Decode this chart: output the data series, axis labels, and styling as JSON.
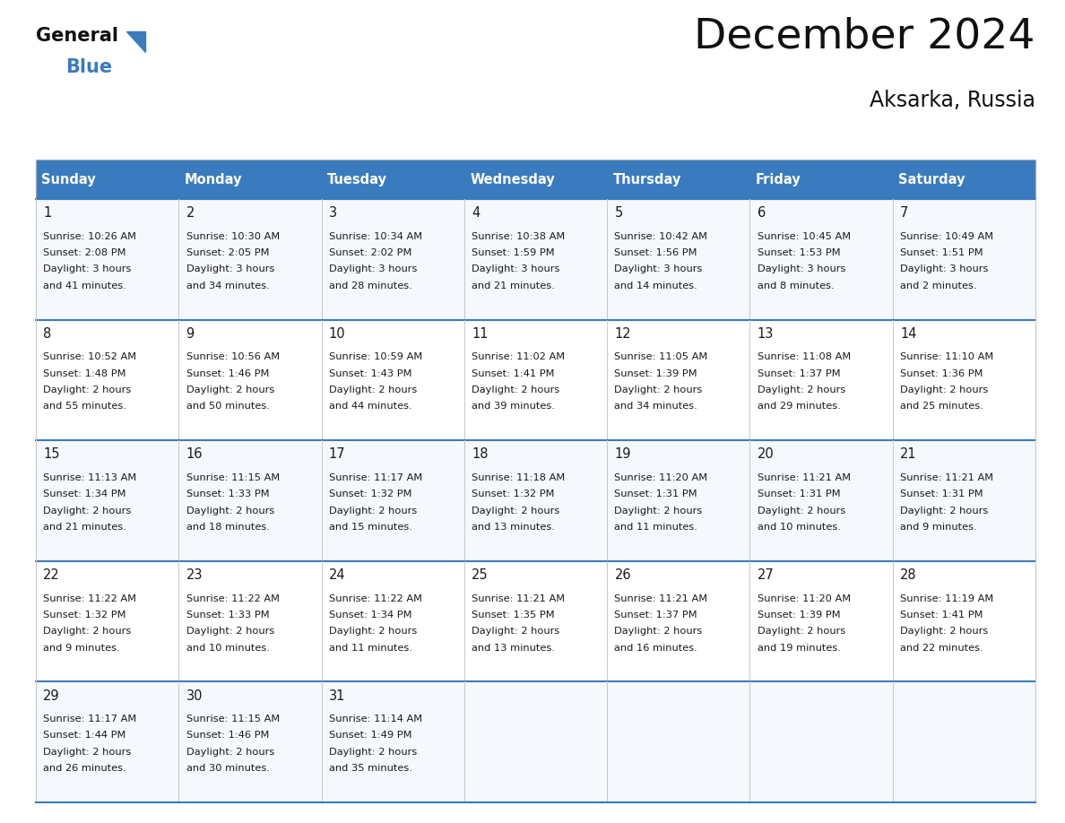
{
  "title": "December 2024",
  "subtitle": "Aksarka, Russia",
  "header_color": "#3a7bbf",
  "header_text_color": "#ffffff",
  "row_bg_odd": "#f5f8fc",
  "row_bg_even": "#ffffff",
  "separator_color": "#3a7bbf",
  "grid_color": "#c8c8c8",
  "text_color": "#1a1a1a",
  "day_headers": [
    "Sunday",
    "Monday",
    "Tuesday",
    "Wednesday",
    "Thursday",
    "Friday",
    "Saturday"
  ],
  "days": [
    {
      "day": 1,
      "col": 0,
      "row": 0,
      "sunrise": "10:26 AM",
      "sunset": "2:08 PM",
      "daylight_h": "3 hours",
      "daylight_m": "and 41 minutes."
    },
    {
      "day": 2,
      "col": 1,
      "row": 0,
      "sunrise": "10:30 AM",
      "sunset": "2:05 PM",
      "daylight_h": "3 hours",
      "daylight_m": "and 34 minutes."
    },
    {
      "day": 3,
      "col": 2,
      "row": 0,
      "sunrise": "10:34 AM",
      "sunset": "2:02 PM",
      "daylight_h": "3 hours",
      "daylight_m": "and 28 minutes."
    },
    {
      "day": 4,
      "col": 3,
      "row": 0,
      "sunrise": "10:38 AM",
      "sunset": "1:59 PM",
      "daylight_h": "3 hours",
      "daylight_m": "and 21 minutes."
    },
    {
      "day": 5,
      "col": 4,
      "row": 0,
      "sunrise": "10:42 AM",
      "sunset": "1:56 PM",
      "daylight_h": "3 hours",
      "daylight_m": "and 14 minutes."
    },
    {
      "day": 6,
      "col": 5,
      "row": 0,
      "sunrise": "10:45 AM",
      "sunset": "1:53 PM",
      "daylight_h": "3 hours",
      "daylight_m": "and 8 minutes."
    },
    {
      "day": 7,
      "col": 6,
      "row": 0,
      "sunrise": "10:49 AM",
      "sunset": "1:51 PM",
      "daylight_h": "3 hours",
      "daylight_m": "and 2 minutes."
    },
    {
      "day": 8,
      "col": 0,
      "row": 1,
      "sunrise": "10:52 AM",
      "sunset": "1:48 PM",
      "daylight_h": "2 hours",
      "daylight_m": "and 55 minutes."
    },
    {
      "day": 9,
      "col": 1,
      "row": 1,
      "sunrise": "10:56 AM",
      "sunset": "1:46 PM",
      "daylight_h": "2 hours",
      "daylight_m": "and 50 minutes."
    },
    {
      "day": 10,
      "col": 2,
      "row": 1,
      "sunrise": "10:59 AM",
      "sunset": "1:43 PM",
      "daylight_h": "2 hours",
      "daylight_m": "and 44 minutes."
    },
    {
      "day": 11,
      "col": 3,
      "row": 1,
      "sunrise": "11:02 AM",
      "sunset": "1:41 PM",
      "daylight_h": "2 hours",
      "daylight_m": "and 39 minutes."
    },
    {
      "day": 12,
      "col": 4,
      "row": 1,
      "sunrise": "11:05 AM",
      "sunset": "1:39 PM",
      "daylight_h": "2 hours",
      "daylight_m": "and 34 minutes."
    },
    {
      "day": 13,
      "col": 5,
      "row": 1,
      "sunrise": "11:08 AM",
      "sunset": "1:37 PM",
      "daylight_h": "2 hours",
      "daylight_m": "and 29 minutes."
    },
    {
      "day": 14,
      "col": 6,
      "row": 1,
      "sunrise": "11:10 AM",
      "sunset": "1:36 PM",
      "daylight_h": "2 hours",
      "daylight_m": "and 25 minutes."
    },
    {
      "day": 15,
      "col": 0,
      "row": 2,
      "sunrise": "11:13 AM",
      "sunset": "1:34 PM",
      "daylight_h": "2 hours",
      "daylight_m": "and 21 minutes."
    },
    {
      "day": 16,
      "col": 1,
      "row": 2,
      "sunrise": "11:15 AM",
      "sunset": "1:33 PM",
      "daylight_h": "2 hours",
      "daylight_m": "and 18 minutes."
    },
    {
      "day": 17,
      "col": 2,
      "row": 2,
      "sunrise": "11:17 AM",
      "sunset": "1:32 PM",
      "daylight_h": "2 hours",
      "daylight_m": "and 15 minutes."
    },
    {
      "day": 18,
      "col": 3,
      "row": 2,
      "sunrise": "11:18 AM",
      "sunset": "1:32 PM",
      "daylight_h": "2 hours",
      "daylight_m": "and 13 minutes."
    },
    {
      "day": 19,
      "col": 4,
      "row": 2,
      "sunrise": "11:20 AM",
      "sunset": "1:31 PM",
      "daylight_h": "2 hours",
      "daylight_m": "and 11 minutes."
    },
    {
      "day": 20,
      "col": 5,
      "row": 2,
      "sunrise": "11:21 AM",
      "sunset": "1:31 PM",
      "daylight_h": "2 hours",
      "daylight_m": "and 10 minutes."
    },
    {
      "day": 21,
      "col": 6,
      "row": 2,
      "sunrise": "11:21 AM",
      "sunset": "1:31 PM",
      "daylight_h": "2 hours",
      "daylight_m": "and 9 minutes."
    },
    {
      "day": 22,
      "col": 0,
      "row": 3,
      "sunrise": "11:22 AM",
      "sunset": "1:32 PM",
      "daylight_h": "2 hours",
      "daylight_m": "and 9 minutes."
    },
    {
      "day": 23,
      "col": 1,
      "row": 3,
      "sunrise": "11:22 AM",
      "sunset": "1:33 PM",
      "daylight_h": "2 hours",
      "daylight_m": "and 10 minutes."
    },
    {
      "day": 24,
      "col": 2,
      "row": 3,
      "sunrise": "11:22 AM",
      "sunset": "1:34 PM",
      "daylight_h": "2 hours",
      "daylight_m": "and 11 minutes."
    },
    {
      "day": 25,
      "col": 3,
      "row": 3,
      "sunrise": "11:21 AM",
      "sunset": "1:35 PM",
      "daylight_h": "2 hours",
      "daylight_m": "and 13 minutes."
    },
    {
      "day": 26,
      "col": 4,
      "row": 3,
      "sunrise": "11:21 AM",
      "sunset": "1:37 PM",
      "daylight_h": "2 hours",
      "daylight_m": "and 16 minutes."
    },
    {
      "day": 27,
      "col": 5,
      "row": 3,
      "sunrise": "11:20 AM",
      "sunset": "1:39 PM",
      "daylight_h": "2 hours",
      "daylight_m": "and 19 minutes."
    },
    {
      "day": 28,
      "col": 6,
      "row": 3,
      "sunrise": "11:19 AM",
      "sunset": "1:41 PM",
      "daylight_h": "2 hours",
      "daylight_m": "and 22 minutes."
    },
    {
      "day": 29,
      "col": 0,
      "row": 4,
      "sunrise": "11:17 AM",
      "sunset": "1:44 PM",
      "daylight_h": "2 hours",
      "daylight_m": "and 26 minutes."
    },
    {
      "day": 30,
      "col": 1,
      "row": 4,
      "sunrise": "11:15 AM",
      "sunset": "1:46 PM",
      "daylight_h": "2 hours",
      "daylight_m": "and 30 minutes."
    },
    {
      "day": 31,
      "col": 2,
      "row": 4,
      "sunrise": "11:14 AM",
      "sunset": "1:49 PM",
      "daylight_h": "2 hours",
      "daylight_m": "and 35 minutes."
    }
  ]
}
